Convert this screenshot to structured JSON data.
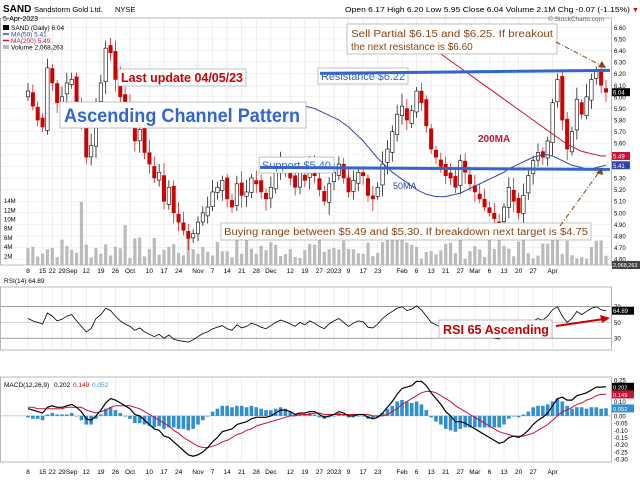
{
  "header": {
    "symbol": "SAND",
    "company": "Sandstorm Gold Ltd.",
    "exchange": "NYSE",
    "date": "5-Apr-2023",
    "ohlc": "Open 6.17  High 6.20  Low 5.95  Close 6.04  Volume 2.1M  Chg -0.07 (-1.15%)",
    "ohlc_dir": "▼",
    "brand": "© StockCharts.com"
  },
  "legend": {
    "price": "SAND (Daily) 6.04",
    "ma50": "MA(50) 5.41",
    "ma200": "MA(200) 5.49",
    "volume": "Volume 2,068,263"
  },
  "annotations": {
    "last_update": "Last update 04/05/23",
    "pattern": "Ascending Channel Pattern",
    "sell_line1": "Sell Partial $6.15 and $6.25. If breakout",
    "sell_line2": "the next resistance is $6.60",
    "resistance": "Resistance $6.22",
    "support": "Support $5.40",
    "ma200_label": "200MA",
    "ma50_label": "50MA",
    "buying": "Buying range between $5.49 and $5.30. If breakdown next target is $4.75",
    "rsi_note": "RSI 65 Ascending"
  },
  "colors": {
    "up": "#000000",
    "down": "#cc0000",
    "ma50": "#3344aa",
    "ma200": "#cc1133",
    "level": "#3366cc",
    "accent_red": "#cc0000",
    "volume": "#bbbbbb",
    "macd_hist": "#2f8fd1",
    "arrow": "#7a4a1a"
  },
  "chart_data": [
    {
      "type": "candlestick",
      "title": "SAND Sandstorm Gold Ltd. NYSE",
      "y_ticks": [
        4.6,
        4.7,
        4.8,
        4.9,
        5.0,
        5.1,
        5.2,
        5.3,
        5.4,
        5.5,
        5.6,
        5.7,
        5.8,
        5.9,
        6.0,
        6.1,
        6.2,
        6.3,
        6.4,
        6.5,
        6.6
      ],
      "ylim": [
        4.55,
        6.68
      ],
      "price_badges": [
        6.04,
        5.49,
        5.41
      ],
      "volume_ticks": [
        "2M",
        "4M",
        "6M",
        "8M",
        "10M",
        "12M",
        "14M"
      ],
      "volume_badge": "2,068,263",
      "levels": {
        "resistance": 6.22,
        "support": 5.4
      },
      "close": [
        6.05,
        5.92,
        5.8,
        5.74,
        6.25,
        6.12,
        5.95,
        6.0,
        6.12,
        6.15,
        5.96,
        5.75,
        5.48,
        5.58,
        5.95,
        6.12,
        6.42,
        6.38,
        6.15,
        6.0,
        5.92,
        5.82,
        5.62,
        5.72,
        5.52,
        5.42,
        5.3,
        5.35,
        5.1,
        5.22,
        5.0,
        4.92,
        4.85,
        4.78,
        4.82,
        4.92,
        5.0,
        5.05,
        5.18,
        5.22,
        5.28,
        5.12,
        5.05,
        5.25,
        5.15,
        5.18,
        5.3,
        5.25,
        5.18,
        5.12,
        5.22,
        5.35,
        5.42,
        5.38,
        5.3,
        5.22,
        5.35,
        5.28,
        5.4,
        5.32,
        5.2,
        5.1,
        5.25,
        5.35,
        5.42,
        5.3,
        5.18,
        5.28,
        5.35,
        5.32,
        5.15,
        5.12,
        5.22,
        5.42,
        5.55,
        5.7,
        5.85,
        5.92,
        5.8,
        5.88,
        6.05,
        5.95,
        5.75,
        5.55,
        5.48,
        5.4,
        5.32,
        5.3,
        5.22,
        5.45,
        5.35,
        5.25,
        5.18,
        5.12,
        5.05,
        5.0,
        4.95,
        4.92,
        5.05,
        5.22,
        5.1,
        5.0,
        5.15,
        5.32,
        5.45,
        5.52,
        5.48,
        5.62,
        5.95,
        6.15,
        5.8,
        5.55,
        5.7,
        5.98,
        5.85,
        6.0,
        6.15,
        6.22,
        6.1,
        6.04
      ],
      "ma50": [
        5.95,
        5.94,
        5.93,
        5.92,
        5.91,
        5.9,
        5.88,
        5.86,
        5.84,
        5.82,
        5.8,
        5.77,
        5.74,
        5.7,
        5.66,
        5.62,
        5.57,
        5.52,
        5.47,
        5.43,
        5.39,
        5.35,
        5.32,
        5.29,
        5.26,
        5.23,
        5.2,
        5.18,
        5.16,
        5.15,
        5.14,
        5.14,
        5.14,
        5.15,
        5.16,
        5.17,
        5.19,
        5.21,
        5.23,
        5.25,
        5.27,
        5.29,
        5.31,
        5.33,
        5.35,
        5.38,
        5.4,
        5.42,
        5.44,
        5.46,
        5.48,
        5.49,
        5.5,
        5.5,
        5.49,
        5.47,
        5.45,
        5.43,
        5.41,
        5.4,
        5.39,
        5.38,
        5.38,
        5.39,
        5.4,
        5.41
      ],
      "ma50_start_index": 54,
      "ma200": [
        6.5,
        6.48,
        6.46,
        6.44,
        6.42,
        6.4,
        6.37,
        6.34,
        6.31,
        6.28,
        6.25,
        6.22,
        6.19,
        6.16,
        6.13,
        6.1,
        6.07,
        6.04,
        6.01,
        5.98,
        5.95,
        5.92,
        5.89,
        5.86,
        5.83,
        5.8,
        5.77,
        5.74,
        5.71,
        5.68,
        5.65,
        5.62,
        5.59,
        5.57,
        5.55,
        5.53,
        5.52,
        5.51,
        5.5,
        5.49,
        5.49
      ],
      "ma200_start_index": 79
    },
    {
      "type": "line",
      "title": "RSI(14) 64.89",
      "series": [
        {
          "name": "RSI(14)",
          "values": [
            55,
            52,
            50,
            48,
            62,
            58,
            52,
            54,
            58,
            60,
            52,
            45,
            38,
            42,
            55,
            60,
            68,
            65,
            58,
            52,
            48,
            45,
            40,
            43,
            38,
            35,
            32,
            35,
            30,
            34,
            29,
            27,
            26,
            25,
            28,
            32,
            36,
            38,
            42,
            44,
            46,
            42,
            40,
            47,
            43,
            45,
            49,
            47,
            44,
            42,
            46,
            50,
            53,
            51,
            48,
            45,
            50,
            47,
            52,
            49,
            45,
            42,
            48,
            52,
            55,
            50,
            45,
            49,
            52,
            51,
            44,
            43,
            48,
            55,
            60,
            64,
            68,
            70,
            65,
            67,
            71,
            66,
            58,
            50,
            47,
            44,
            41,
            40,
            37,
            46,
            42,
            38,
            36,
            34,
            32,
            31,
            30,
            29,
            35,
            42,
            38,
            35,
            41,
            48,
            52,
            55,
            53,
            58,
            66,
            70,
            58,
            50,
            55,
            64,
            60,
            64,
            68,
            70,
            66,
            64.89
          ]
        }
      ],
      "y_ticks": [
        30,
        50,
        70
      ],
      "ylim": [
        15,
        95
      ],
      "badge": 64.89
    },
    {
      "type": "line",
      "title": "MACD(12,26,9) 0.202, 0.149, 0.052",
      "title_parts": {
        "name": "MACD(12,26,9)",
        "macd": "0.202",
        "signal": "0.149",
        "hist": "0.052"
      },
      "series": [
        {
          "name": "MACD",
          "values": [
            0.05,
            0.04,
            0.03,
            0.02,
            0.06,
            0.07,
            0.06,
            0.06,
            0.07,
            0.08,
            0.06,
            0.03,
            -0.02,
            -0.03,
            0.0,
            0.04,
            0.09,
            0.12,
            0.11,
            0.09,
            0.07,
            0.05,
            0.01,
            0.0,
            -0.03,
            -0.06,
            -0.09,
            -0.1,
            -0.14,
            -0.15,
            -0.18,
            -0.21,
            -0.24,
            -0.27,
            -0.28,
            -0.27,
            -0.25,
            -0.22,
            -0.18,
            -0.15,
            -0.11,
            -0.1,
            -0.09,
            -0.06,
            -0.05,
            -0.04,
            -0.02,
            -0.01,
            -0.01,
            -0.01,
            0.0,
            0.02,
            0.04,
            0.04,
            0.03,
            0.01,
            0.02,
            0.02,
            0.03,
            0.03,
            0.01,
            -0.01,
            0.0,
            0.01,
            0.03,
            0.02,
            0.0,
            0.0,
            0.01,
            0.01,
            -0.01,
            -0.02,
            -0.01,
            0.02,
            0.06,
            0.1,
            0.15,
            0.19,
            0.2,
            0.21,
            0.24,
            0.24,
            0.21,
            0.16,
            0.12,
            0.08,
            0.03,
            0.0,
            -0.04,
            -0.04,
            -0.05,
            -0.07,
            -0.09,
            -0.11,
            -0.13,
            -0.15,
            -0.17,
            -0.19,
            -0.18,
            -0.15,
            -0.14,
            -0.15,
            -0.13,
            -0.1,
            -0.06,
            -0.03,
            -0.01,
            0.02,
            0.07,
            0.12,
            0.13,
            0.11,
            0.11,
            0.14,
            0.15,
            0.16,
            0.18,
            0.2,
            0.2,
            0.202
          ]
        },
        {
          "name": "Signal",
          "values": [
            0.06,
            0.06,
            0.05,
            0.05,
            0.05,
            0.05,
            0.05,
            0.05,
            0.06,
            0.06,
            0.06,
            0.06,
            0.04,
            0.03,
            0.02,
            0.03,
            0.04,
            0.06,
            0.07,
            0.07,
            0.07,
            0.07,
            0.06,
            0.05,
            0.03,
            0.01,
            -0.01,
            -0.03,
            -0.05,
            -0.07,
            -0.1,
            -0.12,
            -0.15,
            -0.17,
            -0.19,
            -0.21,
            -0.22,
            -0.22,
            -0.21,
            -0.2,
            -0.18,
            -0.17,
            -0.15,
            -0.13,
            -0.12,
            -0.1,
            -0.09,
            -0.07,
            -0.06,
            -0.05,
            -0.04,
            -0.03,
            -0.02,
            -0.01,
            0.0,
            0.0,
            0.01,
            0.01,
            0.01,
            0.02,
            0.02,
            0.01,
            0.01,
            0.01,
            0.01,
            0.01,
            0.01,
            0.01,
            0.01,
            0.01,
            0.01,
            0.0,
            0.0,
            0.0,
            0.01,
            0.03,
            0.05,
            0.08,
            0.1,
            0.12,
            0.14,
            0.16,
            0.17,
            0.17,
            0.16,
            0.14,
            0.12,
            0.1,
            0.07,
            0.05,
            0.03,
            0.01,
            -0.01,
            -0.03,
            -0.05,
            -0.07,
            -0.09,
            -0.11,
            -0.12,
            -0.13,
            -0.14,
            -0.14,
            -0.14,
            -0.13,
            -0.12,
            -0.1,
            -0.08,
            -0.06,
            -0.03,
            0.0,
            0.03,
            0.04,
            0.06,
            0.08,
            0.09,
            0.11,
            0.12,
            0.14,
            0.15,
            0.149
          ]
        }
      ],
      "y_ticks": [
        -0.3,
        -0.25,
        -0.2,
        -0.15,
        -0.1,
        -0.05,
        0.0,
        0.05,
        0.1,
        0.15,
        0.2,
        0.25
      ],
      "ylim": [
        -0.32,
        0.27
      ],
      "badges": [
        0.202,
        0.149,
        0.052
      ]
    }
  ],
  "x_axis": {
    "ticks": [
      {
        "i": 0,
        "label": "8"
      },
      {
        "i": 3,
        "label": "15"
      },
      {
        "i": 5,
        "label": "22"
      },
      {
        "i": 7,
        "label": "29"
      },
      {
        "i": 9,
        "label": "Sep"
      },
      {
        "i": 12,
        "label": "12"
      },
      {
        "i": 15,
        "label": "19"
      },
      {
        "i": 18,
        "label": "26"
      },
      {
        "i": 21,
        "label": "Oct"
      },
      {
        "i": 25,
        "label": "10"
      },
      {
        "i": 28,
        "label": "17"
      },
      {
        "i": 31,
        "label": "24"
      },
      {
        "i": 35,
        "label": "Nov"
      },
      {
        "i": 38,
        "label": "7"
      },
      {
        "i": 41,
        "label": "14"
      },
      {
        "i": 44,
        "label": "21"
      },
      {
        "i": 47,
        "label": "28"
      },
      {
        "i": 50,
        "label": "Dec"
      },
      {
        "i": 54,
        "label": "12"
      },
      {
        "i": 57,
        "label": "19"
      },
      {
        "i": 60,
        "label": "27"
      },
      {
        "i": 63,
        "label": "2023"
      },
      {
        "i": 66,
        "label": "9"
      },
      {
        "i": 69,
        "label": "17"
      },
      {
        "i": 72,
        "label": "23"
      },
      {
        "i": 77,
        "label": "Feb"
      },
      {
        "i": 80,
        "label": "6"
      },
      {
        "i": 83,
        "label": "13"
      },
      {
        "i": 86,
        "label": "21"
      },
      {
        "i": 89,
        "label": "27"
      },
      {
        "i": 92,
        "label": "Mar"
      },
      {
        "i": 95,
        "label": "6"
      },
      {
        "i": 98,
        "label": "13"
      },
      {
        "i": 101,
        "label": "20"
      },
      {
        "i": 104,
        "label": "27"
      },
      {
        "i": 108,
        "label": "Apr"
      }
    ]
  }
}
